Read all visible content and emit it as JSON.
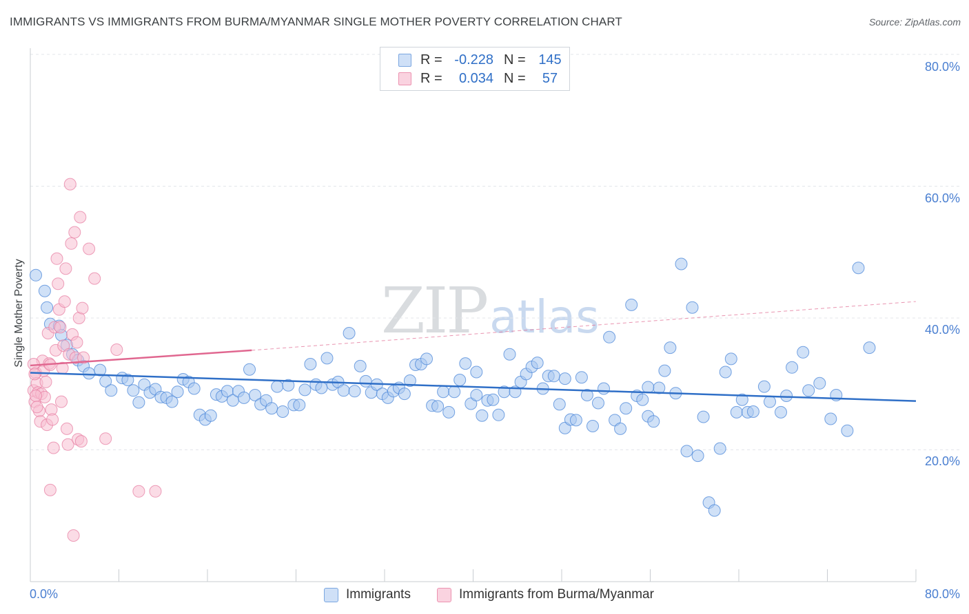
{
  "header": {
    "title": "IMMIGRANTS VS IMMIGRANTS FROM BURMA/MYANMAR SINGLE MOTHER POVERTY CORRELATION CHART",
    "source": "Source: ZipAtlas.com"
  },
  "watermark": {
    "zip": "ZIP",
    "atlas": "atlas"
  },
  "legend": {
    "rows": [
      {
        "r_label": "R =",
        "r_value": "-0.228",
        "n_label": "N =",
        "n_value": "145",
        "color": "#a9c8f0",
        "border": "#7aa6e0"
      },
      {
        "r_label": "R =",
        "r_value": "0.034",
        "n_label": "N =",
        "n_value": "57",
        "color": "#f7bfd1",
        "border": "#ec92b0"
      }
    ]
  },
  "bottom_legend": {
    "items": [
      {
        "label": "Immigrants",
        "color": "#a9c8f0"
      },
      {
        "label": "Immigrants from Burma/Myanmar",
        "color": "#f7bfd1"
      }
    ]
  },
  "axes": {
    "y_title": "Single Mother Poverty",
    "y_ticks": [
      "80.0%",
      "60.0%",
      "40.0%",
      "20.0%"
    ],
    "x_left": "0.0%",
    "x_right": "80.0%"
  },
  "chart_data": {
    "type": "scatter",
    "title": "IMMIGRANTS VS IMMIGRANTS FROM BURMA/MYANMAR SINGLE MOTHER POVERTY CORRELATION CHART",
    "xlabel": "",
    "ylabel": "Single Mother Poverty",
    "xlim": [
      0,
      80
    ],
    "ylim": [
      0,
      82
    ],
    "y_gridlines": [
      20,
      40,
      60,
      80
    ],
    "legend_position": "top-center",
    "series": [
      {
        "name": "Immigrants",
        "color": "#4a86d8",
        "fill": "#a9c8f0",
        "trend": {
          "x": [
            0,
            80
          ],
          "y": [
            31.7,
            27.4
          ],
          "color": "#2f6fc7"
        },
        "points": [
          [
            0.5,
            46.5
          ],
          [
            1.3,
            44.1
          ],
          [
            1.5,
            41.6
          ],
          [
            1.8,
            39.1
          ],
          [
            2.6,
            38.8
          ],
          [
            2.8,
            37.4
          ],
          [
            3.3,
            35.9
          ],
          [
            3.8,
            34.5
          ],
          [
            4.3,
            33.6
          ],
          [
            4.8,
            32.7
          ],
          [
            5.3,
            31.6
          ],
          [
            6.3,
            32.1
          ],
          [
            6.8,
            30.4
          ],
          [
            7.3,
            29.0
          ],
          [
            8.3,
            30.9
          ],
          [
            8.8,
            30.6
          ],
          [
            9.3,
            29.0
          ],
          [
            9.8,
            27.2
          ],
          [
            10.3,
            29.9
          ],
          [
            10.8,
            28.7
          ],
          [
            11.3,
            29.2
          ],
          [
            11.8,
            28.0
          ],
          [
            12.3,
            27.9
          ],
          [
            12.8,
            27.3
          ],
          [
            13.3,
            28.8
          ],
          [
            13.8,
            30.7
          ],
          [
            14.3,
            30.3
          ],
          [
            14.8,
            29.3
          ],
          [
            15.3,
            25.3
          ],
          [
            15.8,
            24.6
          ],
          [
            16.3,
            25.2
          ],
          [
            16.8,
            28.4
          ],
          [
            17.3,
            28.1
          ],
          [
            17.8,
            28.9
          ],
          [
            18.3,
            27.5
          ],
          [
            18.8,
            28.9
          ],
          [
            19.3,
            27.9
          ],
          [
            19.8,
            32.2
          ],
          [
            20.3,
            28.3
          ],
          [
            20.8,
            26.9
          ],
          [
            21.3,
            27.5
          ],
          [
            21.8,
            26.3
          ],
          [
            22.3,
            29.6
          ],
          [
            22.8,
            25.8
          ],
          [
            23.3,
            29.8
          ],
          [
            23.8,
            26.8
          ],
          [
            24.3,
            26.8
          ],
          [
            24.8,
            29.1
          ],
          [
            25.3,
            33.0
          ],
          [
            25.8,
            29.9
          ],
          [
            26.3,
            29.4
          ],
          [
            26.8,
            33.9
          ],
          [
            27.3,
            29.9
          ],
          [
            27.8,
            30.3
          ],
          [
            28.3,
            29.0
          ],
          [
            28.8,
            37.7
          ],
          [
            29.3,
            28.9
          ],
          [
            29.8,
            32.7
          ],
          [
            30.3,
            30.4
          ],
          [
            30.8,
            28.7
          ],
          [
            31.3,
            29.9
          ],
          [
            31.8,
            28.5
          ],
          [
            32.3,
            27.9
          ],
          [
            32.8,
            28.9
          ],
          [
            33.3,
            29.4
          ],
          [
            33.8,
            28.5
          ],
          [
            34.3,
            30.5
          ],
          [
            34.8,
            32.9
          ],
          [
            35.3,
            33.0
          ],
          [
            35.8,
            33.8
          ],
          [
            36.3,
            26.7
          ],
          [
            36.8,
            26.6
          ],
          [
            37.3,
            28.8
          ],
          [
            37.8,
            25.7
          ],
          [
            38.3,
            28.8
          ],
          [
            38.8,
            30.6
          ],
          [
            39.3,
            33.1
          ],
          [
            39.8,
            27.0
          ],
          [
            40.3,
            28.3
          ],
          [
            40.8,
            25.2
          ],
          [
            41.3,
            27.5
          ],
          [
            41.8,
            27.6
          ],
          [
            42.3,
            25.3
          ],
          [
            42.8,
            28.8
          ],
          [
            43.3,
            34.5
          ],
          [
            43.8,
            28.8
          ],
          [
            44.3,
            30.3
          ],
          [
            44.8,
            31.5
          ],
          [
            45.3,
            32.6
          ],
          [
            45.8,
            33.2
          ],
          [
            46.3,
            29.3
          ],
          [
            46.8,
            31.2
          ],
          [
            47.3,
            31.2
          ],
          [
            47.8,
            26.9
          ],
          [
            48.3,
            23.3
          ],
          [
            48.8,
            24.6
          ],
          [
            49.3,
            24.5
          ],
          [
            49.8,
            31.0
          ],
          [
            50.3,
            28.3
          ],
          [
            50.8,
            23.6
          ],
          [
            51.3,
            27.1
          ],
          [
            51.8,
            29.3
          ],
          [
            52.3,
            37.1
          ],
          [
            52.8,
            24.5
          ],
          [
            53.3,
            23.2
          ],
          [
            53.8,
            26.3
          ],
          [
            54.3,
            42.0
          ],
          [
            54.8,
            28.2
          ],
          [
            55.3,
            27.6
          ],
          [
            55.8,
            25.1
          ],
          [
            56.3,
            24.3
          ],
          [
            56.8,
            29.4
          ],
          [
            57.3,
            32.0
          ],
          [
            57.8,
            35.5
          ],
          [
            58.3,
            28.6
          ],
          [
            58.8,
            48.2
          ],
          [
            59.3,
            19.8
          ],
          [
            59.8,
            41.6
          ],
          [
            60.3,
            19.1
          ],
          [
            60.8,
            25.0
          ],
          [
            61.3,
            12.0
          ],
          [
            61.8,
            10.8
          ],
          [
            62.3,
            20.2
          ],
          [
            62.8,
            31.8
          ],
          [
            63.3,
            33.8
          ],
          [
            63.8,
            25.7
          ],
          [
            64.3,
            27.6
          ],
          [
            64.8,
            25.7
          ],
          [
            65.3,
            25.8
          ],
          [
            66.3,
            29.6
          ],
          [
            66.8,
            27.3
          ],
          [
            67.8,
            25.7
          ],
          [
            68.3,
            28.2
          ],
          [
            68.8,
            32.5
          ],
          [
            69.8,
            34.8
          ],
          [
            70.3,
            29.0
          ],
          [
            71.3,
            30.1
          ],
          [
            72.3,
            24.7
          ],
          [
            72.8,
            28.3
          ],
          [
            73.8,
            22.9
          ],
          [
            74.8,
            47.6
          ],
          [
            75.8,
            35.5
          ],
          [
            55.8,
            29.5
          ],
          [
            48.3,
            30.8
          ],
          [
            40.3,
            31.8
          ]
        ]
      },
      {
        "name": "Immigrants from Burma/Myanmar",
        "color": "#e77fa3",
        "fill": "#f7bfd1",
        "trend": {
          "x": [
            0,
            20
          ],
          "y": [
            32.8,
            35.1
          ],
          "dashed_to": [
            80,
            42.5
          ],
          "color": "#e0668f"
        },
        "points": [
          [
            0.3,
            29.0
          ],
          [
            0.4,
            27.3
          ],
          [
            0.5,
            31.7
          ],
          [
            0.6,
            30.1
          ],
          [
            0.7,
            28.7
          ],
          [
            0.8,
            25.9
          ],
          [
            0.9,
            24.3
          ],
          [
            1.0,
            28.5
          ],
          [
            1.1,
            33.5
          ],
          [
            1.2,
            32.0
          ],
          [
            1.3,
            28.0
          ],
          [
            1.4,
            30.3
          ],
          [
            1.5,
            23.8
          ],
          [
            1.6,
            37.7
          ],
          [
            1.7,
            33.1
          ],
          [
            1.8,
            32.9
          ],
          [
            1.9,
            26.1
          ],
          [
            2.0,
            24.6
          ],
          [
            2.1,
            20.3
          ],
          [
            2.2,
            38.6
          ],
          [
            2.3,
            35.1
          ],
          [
            2.4,
            49.0
          ],
          [
            2.5,
            45.2
          ],
          [
            2.6,
            41.3
          ],
          [
            2.7,
            38.6
          ],
          [
            2.8,
            27.3
          ],
          [
            2.9,
            32.4
          ],
          [
            3.0,
            35.8
          ],
          [
            3.1,
            42.5
          ],
          [
            3.2,
            47.5
          ],
          [
            3.3,
            23.2
          ],
          [
            3.4,
            20.8
          ],
          [
            3.5,
            34.5
          ],
          [
            3.6,
            60.3
          ],
          [
            3.7,
            51.3
          ],
          [
            3.8,
            37.5
          ],
          [
            3.9,
            7.0
          ],
          [
            4.0,
            53.0
          ],
          [
            4.1,
            34.0
          ],
          [
            4.2,
            36.3
          ],
          [
            4.3,
            21.6
          ],
          [
            4.4,
            40.0
          ],
          [
            4.5,
            55.3
          ],
          [
            4.6,
            21.3
          ],
          [
            4.7,
            41.5
          ],
          [
            4.8,
            34.0
          ],
          [
            5.3,
            50.5
          ],
          [
            5.8,
            46.0
          ],
          [
            6.8,
            21.7
          ],
          [
            7.8,
            35.2
          ],
          [
            9.8,
            13.7
          ],
          [
            11.3,
            13.7
          ],
          [
            1.8,
            13.9
          ],
          [
            0.3,
            33.0
          ],
          [
            0.4,
            31.5
          ],
          [
            0.5,
            28.2
          ],
          [
            0.6,
            26.5
          ]
        ]
      }
    ]
  }
}
